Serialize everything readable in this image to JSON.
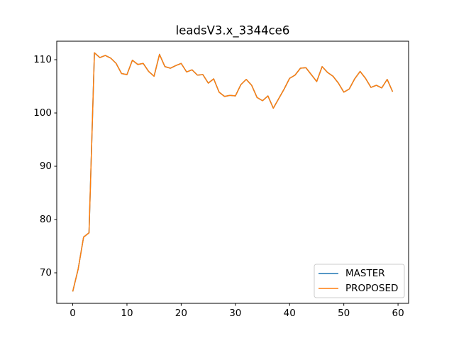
{
  "chart_data": {
    "type": "line",
    "title": "leadsV3.x_3344ce6",
    "x": [
      0,
      1,
      2,
      3,
      4,
      5,
      6,
      7,
      8,
      9,
      10,
      11,
      12,
      13,
      14,
      15,
      16,
      17,
      18,
      19,
      20,
      21,
      22,
      23,
      24,
      25,
      26,
      27,
      28,
      29,
      30,
      31,
      32,
      33,
      34,
      35,
      36,
      37,
      38,
      39,
      40,
      41,
      42,
      43,
      44,
      45,
      46,
      47,
      48,
      49,
      50,
      51,
      52,
      53,
      54,
      55,
      56,
      57,
      58,
      59
    ],
    "series": [
      {
        "name": "MASTER",
        "color": "#1f77b4",
        "values": [
          66.5,
          70.7,
          76.7,
          77.5,
          111.3,
          110.4,
          110.8,
          110.3,
          109.3,
          107.4,
          107.2,
          109.9,
          109.1,
          109.3,
          107.8,
          106.9,
          111.0,
          108.7,
          108.4,
          108.9,
          109.3,
          107.7,
          108.1,
          107.1,
          107.2,
          105.6,
          106.4,
          103.9,
          103.1,
          103.3,
          103.2,
          105.3,
          106.3,
          105.2,
          102.9,
          102.3,
          103.2,
          100.9,
          102.7,
          104.5,
          106.5,
          107.1,
          108.4,
          108.5,
          107.2,
          105.9,
          108.7,
          107.6,
          106.9,
          105.6,
          103.9,
          104.5,
          106.4,
          107.8,
          106.5,
          104.8,
          105.2,
          104.7,
          106.3,
          104.0
        ]
      },
      {
        "name": "PROPOSED",
        "color": "#ff7f0e",
        "values": [
          66.5,
          70.7,
          76.7,
          77.5,
          111.3,
          110.4,
          110.8,
          110.3,
          109.3,
          107.4,
          107.2,
          109.9,
          109.1,
          109.3,
          107.8,
          106.9,
          111.0,
          108.7,
          108.4,
          108.9,
          109.3,
          107.7,
          108.1,
          107.1,
          107.2,
          105.6,
          106.4,
          103.9,
          103.1,
          103.3,
          103.2,
          105.3,
          106.3,
          105.2,
          102.9,
          102.3,
          103.2,
          100.9,
          102.7,
          104.5,
          106.5,
          107.1,
          108.4,
          108.5,
          107.2,
          105.9,
          108.7,
          107.6,
          106.9,
          105.6,
          103.9,
          104.5,
          106.4,
          107.8,
          106.5,
          104.8,
          105.2,
          104.7,
          106.3,
          104.0
        ]
      }
    ],
    "xlim": [
      -2.95,
      61.95
    ],
    "xticks": [
      0,
      10,
      20,
      30,
      40,
      50,
      60
    ],
    "ylim": [
      64.27,
      113.47
    ],
    "yticks": [
      70,
      80,
      90,
      100,
      110
    ],
    "legend": "lower right"
  }
}
